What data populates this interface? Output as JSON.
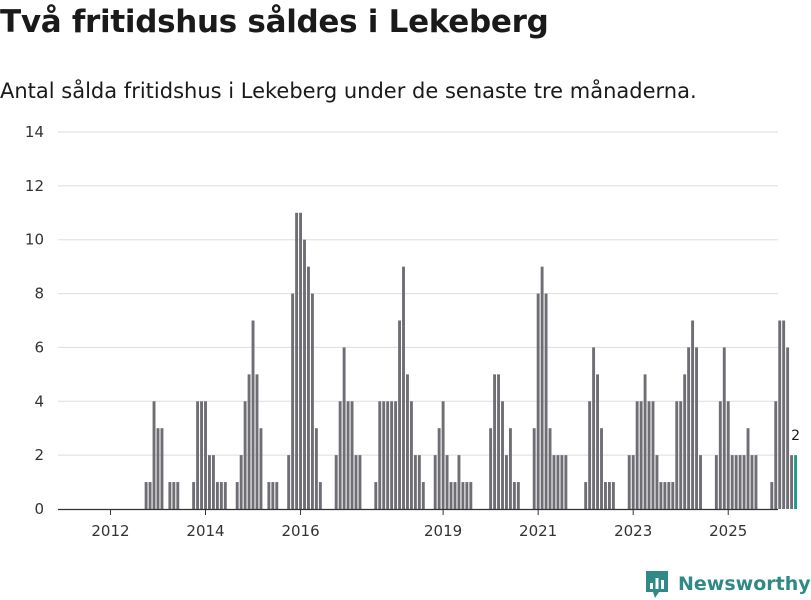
{
  "header": {
    "title": "Två fritidshus såldes i Lekeberg",
    "subtitle": "Antal sålda fritidshus i Lekeberg under de senaste tre månaderna."
  },
  "brand": {
    "name": "Newsworthy",
    "color": "#2f8a86"
  },
  "colors": {
    "bar": "#6e6e74",
    "highlight": "#1f9a8a",
    "grid": "#dddddd",
    "axis": "#333333"
  },
  "chart_data": {
    "type": "bar",
    "title": "Två fritidshus såldes i Lekeberg",
    "subtitle": "Antal sålda fritidshus i Lekeberg under de senaste tre månaderna.",
    "xlabel": "",
    "ylabel": "",
    "ylim": [
      0,
      14
    ],
    "yticks": [
      0,
      2,
      4,
      6,
      8,
      10,
      12,
      14
    ],
    "grid": true,
    "start": "2011-01",
    "xtick_labels": [
      {
        "label": "2012",
        "year": 2012
      },
      {
        "label": "2014",
        "year": 2014
      },
      {
        "label": "2016",
        "year": 2016
      },
      {
        "label": "2019",
        "year": 2019
      },
      {
        "label": "2021",
        "year": 2021
      },
      {
        "label": "2023",
        "year": 2023
      },
      {
        "label": "2025",
        "year": 2025
      }
    ],
    "values": [
      0,
      0,
      0,
      0,
      0,
      0,
      0,
      0,
      0,
      0,
      0,
      0,
      0,
      0,
      0,
      0,
      0,
      0,
      0,
      0,
      0,
      1,
      1,
      4,
      3,
      3,
      0,
      1,
      1,
      1,
      0,
      0,
      0,
      1,
      4,
      4,
      4,
      2,
      2,
      1,
      1,
      1,
      0,
      0,
      1,
      2,
      4,
      5,
      7,
      5,
      3,
      0,
      1,
      1,
      1,
      0,
      0,
      2,
      8,
      11,
      11,
      10,
      9,
      8,
      3,
      1,
      0,
      0,
      0,
      2,
      4,
      6,
      4,
      4,
      2,
      2,
      0,
      0,
      0,
      1,
      4,
      4,
      4,
      4,
      4,
      7,
      9,
      5,
      4,
      2,
      2,
      1,
      0,
      0,
      2,
      3,
      4,
      2,
      1,
      1,
      2,
      1,
      1,
      1,
      0,
      0,
      0,
      0,
      3,
      5,
      5,
      4,
      2,
      3,
      1,
      1,
      0,
      0,
      0,
      3,
      8,
      9,
      8,
      3,
      2,
      2,
      2,
      2,
      0,
      0,
      0,
      0,
      1,
      4,
      6,
      5,
      3,
      1,
      1,
      1,
      0,
      0,
      0,
      2,
      2,
      4,
      4,
      5,
      4,
      4,
      2,
      1,
      1,
      1,
      1,
      4,
      4,
      5,
      6,
      7,
      6,
      2,
      0,
      0,
      0,
      2,
      4,
      6,
      4,
      2,
      2,
      2,
      2,
      3,
      2,
      2,
      0,
      0,
      0,
      1,
      4,
      7,
      7,
      6,
      2,
      2
    ],
    "highlight_last": 1,
    "annotation": {
      "label": "2",
      "value": 2
    }
  }
}
